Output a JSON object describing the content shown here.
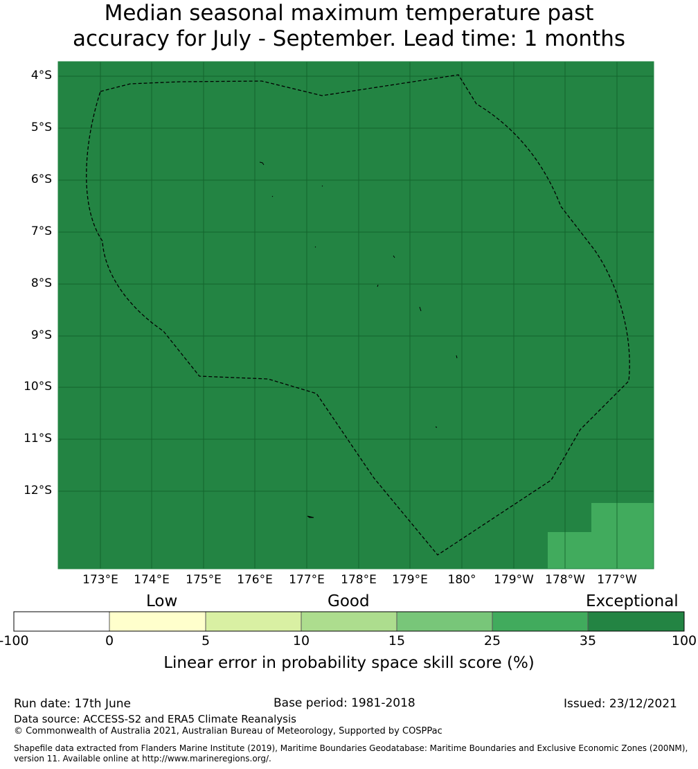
{
  "title": {
    "line1": "Median seasonal maximum temperature past",
    "line2": "accuracy for July - September. Lead time: 1 months"
  },
  "map": {
    "latitude_labels": [
      "4°S",
      "5°S",
      "6°S",
      "7°S",
      "8°S",
      "9°S",
      "10°S",
      "11°S",
      "12°S"
    ],
    "longitude_labels": [
      "173°E",
      "174°E",
      "175°E",
      "176°E",
      "177°E",
      "178°E",
      "179°E",
      "180°",
      "179°W",
      "178°W",
      "177°W"
    ],
    "background_color": "#238443",
    "secondary_color": "#41ab5d",
    "boundary_style": "dashed black line (EEZ)"
  },
  "colorbar": {
    "categories": [
      "Low",
      "Good",
      "Exceptional"
    ],
    "tick_labels": [
      "-100",
      "0",
      "5",
      "10",
      "15",
      "25",
      "35",
      "100"
    ],
    "colors": [
      "#ffffff",
      "#ffffcc",
      "#d9f0a3",
      "#addd8e",
      "#78c679",
      "#41ab5d",
      "#238443"
    ],
    "title": "Linear error in probability space skill score (%)"
  },
  "footer": {
    "run_date": "Run date: 17th June",
    "base_period": "Base period: 1981-2018",
    "issued": "Issued: 23/12/2021",
    "data_source": "Data source: ACCESS-S2 and ERA5 Climate Reanalysis",
    "copyright": "© Commonwealth of Australia 2021, Australian Bureau of Meteorology, Supported by COSPPac",
    "shapefile_line1": "Shapefile data extracted from Flanders Marine Institute (2019), Maritime Boundaries Geodatabase: Maritime Boundaries and Exclusive Economic Zones (200NM),",
    "shapefile_line2": "version 11. Available online at http://www.marineregions.org/."
  }
}
